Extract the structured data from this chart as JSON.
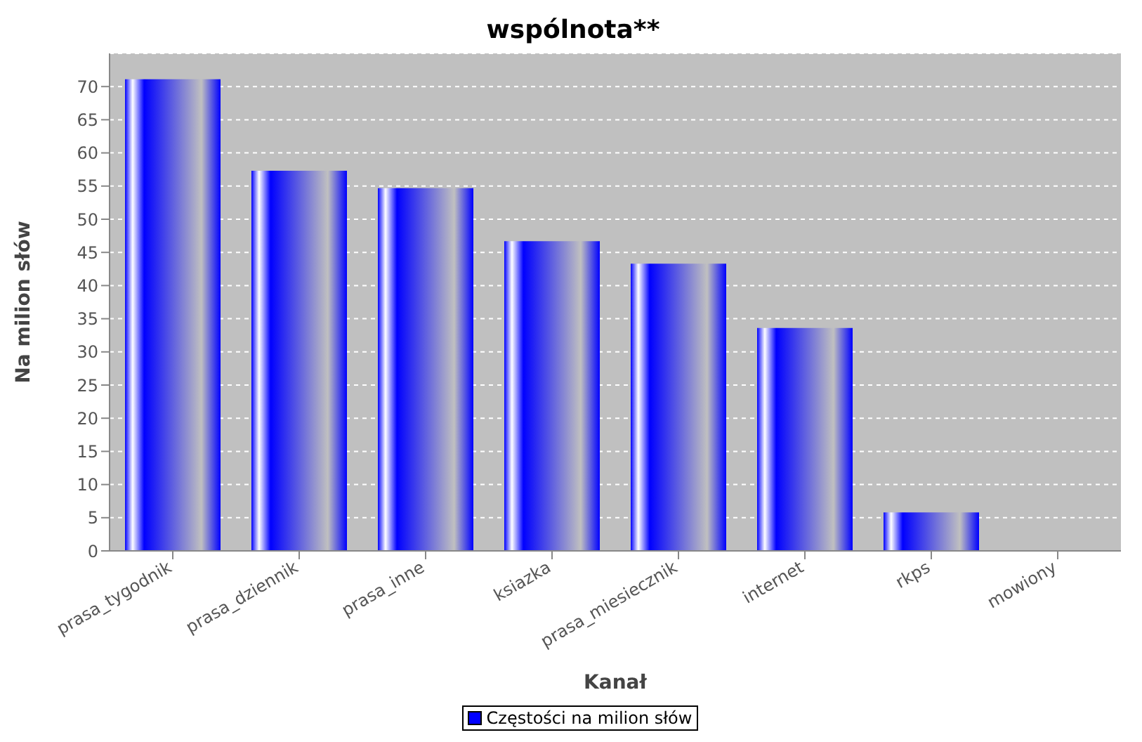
{
  "chart_data": {
    "type": "bar",
    "title": "wspólnota**",
    "xlabel": "Kanał",
    "ylabel": "Na milion słów",
    "categories": [
      "prasa_tygodnik",
      "prasa_dziennik",
      "prasa_inne",
      "ksiazka",
      "prasa_miesiecznik",
      "internet",
      "rkps",
      "mowiony"
    ],
    "series": [
      {
        "name": "Częstości na milion słów",
        "color": "#0000ff",
        "values": [
          71.1,
          57.3,
          54.7,
          46.7,
          43.3,
          33.6,
          5.8,
          0
        ]
      }
    ],
    "ylim": [
      0,
      75
    ],
    "yticks": [
      0,
      5,
      10,
      15,
      20,
      25,
      30,
      35,
      40,
      45,
      50,
      55,
      60,
      65,
      70
    ],
    "grid": "y",
    "legend": "bottom"
  }
}
